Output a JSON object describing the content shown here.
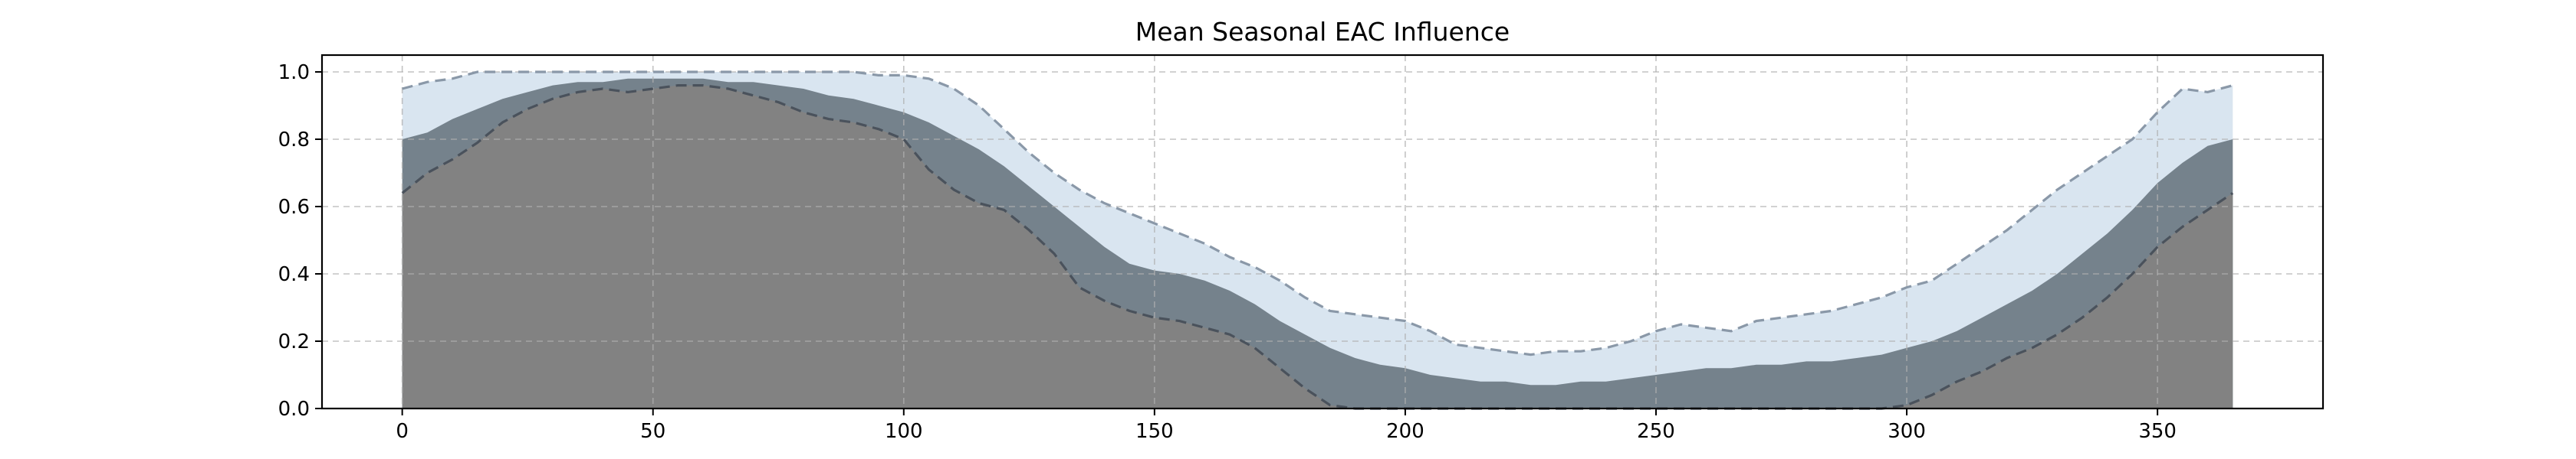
{
  "chart_data": {
    "type": "area",
    "title": "Mean Seasonal EAC Influence",
    "xlabel": "",
    "ylabel": "",
    "xlim": [
      -16,
      383
    ],
    "ylim": [
      0,
      1.05
    ],
    "xticks": [
      0,
      50,
      100,
      150,
      200,
      250,
      300,
      350
    ],
    "yticks": [
      0.0,
      0.2,
      0.4,
      0.6,
      0.8,
      1.0
    ],
    "xtick_labels": [
      "0",
      "50",
      "100",
      "150",
      "200",
      "250",
      "300",
      "350"
    ],
    "ytick_labels": [
      "0.0",
      "0.2",
      "0.4",
      "0.6",
      "0.8",
      "1.0"
    ],
    "grid": true,
    "legend": "none",
    "x": [
      0,
      5,
      10,
      15,
      20,
      25,
      30,
      35,
      40,
      45,
      50,
      55,
      60,
      65,
      70,
      75,
      80,
      85,
      90,
      95,
      100,
      105,
      110,
      115,
      120,
      125,
      130,
      135,
      140,
      145,
      150,
      155,
      160,
      165,
      170,
      175,
      180,
      185,
      190,
      195,
      200,
      205,
      210,
      215,
      220,
      225,
      230,
      235,
      240,
      245,
      250,
      255,
      260,
      265,
      270,
      275,
      280,
      285,
      290,
      295,
      300,
      305,
      310,
      315,
      320,
      325,
      330,
      335,
      340,
      345,
      350,
      355,
      360,
      365
    ],
    "series": [
      {
        "role": "upper",
        "values": [
          0.95,
          0.97,
          0.98,
          1.0,
          1.0,
          1.0,
          1.0,
          1.0,
          1.0,
          1.0,
          1.0,
          1.0,
          1.0,
          1.0,
          1.0,
          1.0,
          1.0,
          1.0,
          1.0,
          0.99,
          0.99,
          0.98,
          0.95,
          0.9,
          0.83,
          0.76,
          0.7,
          0.65,
          0.61,
          0.58,
          0.55,
          0.52,
          0.49,
          0.45,
          0.42,
          0.38,
          0.33,
          0.29,
          0.28,
          0.27,
          0.26,
          0.23,
          0.19,
          0.18,
          0.17,
          0.16,
          0.17,
          0.17,
          0.18,
          0.2,
          0.23,
          0.25,
          0.24,
          0.23,
          0.26,
          0.27,
          0.28,
          0.29,
          0.31,
          0.33,
          0.36,
          0.38,
          0.43,
          0.48,
          0.53,
          0.59,
          0.65,
          0.7,
          0.75,
          0.8,
          0.88,
          0.95,
          0.94,
          0.96
        ],
        "color": "#d9e5f0",
        "line_color": "#8a98a8"
      },
      {
        "role": "mean",
        "values": [
          0.8,
          0.82,
          0.86,
          0.89,
          0.92,
          0.94,
          0.96,
          0.97,
          0.97,
          0.98,
          0.98,
          0.98,
          0.98,
          0.97,
          0.97,
          0.96,
          0.95,
          0.93,
          0.92,
          0.9,
          0.88,
          0.85,
          0.81,
          0.77,
          0.72,
          0.66,
          0.6,
          0.54,
          0.48,
          0.43,
          0.41,
          0.4,
          0.38,
          0.35,
          0.31,
          0.26,
          0.22,
          0.18,
          0.15,
          0.13,
          0.12,
          0.1,
          0.09,
          0.08,
          0.08,
          0.07,
          0.07,
          0.08,
          0.08,
          0.09,
          0.1,
          0.11,
          0.12,
          0.12,
          0.13,
          0.13,
          0.14,
          0.14,
          0.15,
          0.16,
          0.18,
          0.2,
          0.23,
          0.27,
          0.31,
          0.35,
          0.4,
          0.46,
          0.52,
          0.59,
          0.67,
          0.73,
          0.78,
          0.8
        ],
        "color": "#75828c"
      },
      {
        "role": "lower",
        "values": [
          0.64,
          0.7,
          0.74,
          0.79,
          0.85,
          0.89,
          0.92,
          0.94,
          0.95,
          0.94,
          0.95,
          0.96,
          0.96,
          0.95,
          0.93,
          0.91,
          0.88,
          0.86,
          0.85,
          0.83,
          0.8,
          0.71,
          0.65,
          0.61,
          0.59,
          0.53,
          0.46,
          0.36,
          0.32,
          0.29,
          0.27,
          0.26,
          0.24,
          0.22,
          0.18,
          0.12,
          0.06,
          0.01,
          0.0,
          0.0,
          0.0,
          0.0,
          0.0,
          0.0,
          0.0,
          0.0,
          0.0,
          0.0,
          0.0,
          0.0,
          0.0,
          0.0,
          0.0,
          0.0,
          0.0,
          0.0,
          0.0,
          0.0,
          0.0,
          0.0,
          0.01,
          0.04,
          0.08,
          0.11,
          0.15,
          0.18,
          0.22,
          0.27,
          0.33,
          0.4,
          0.48,
          0.54,
          0.59,
          0.64
        ],
        "color": "#828282",
        "line_color": "#4a525c"
      }
    ]
  }
}
